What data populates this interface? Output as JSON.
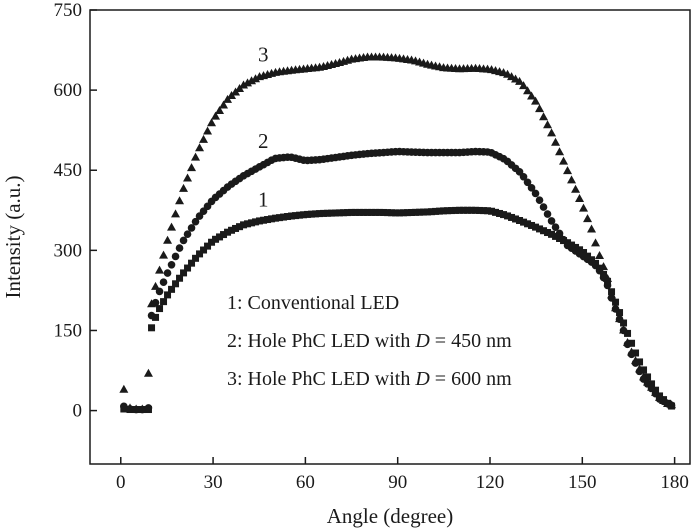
{
  "chart_data": {
    "type": "scatter",
    "title": "",
    "xlabel": "Angle (degree)",
    "ylabel": "Intensity (a.u.)",
    "xlim": [
      -10,
      185
    ],
    "ylim": [
      -100,
      750
    ],
    "xticks": [
      0,
      30,
      60,
      90,
      120,
      150,
      180
    ],
    "yticks": [
      0,
      150,
      300,
      450,
      600,
      750
    ],
    "grid": false,
    "legend_position": "lower-center",
    "legend": [
      {
        "label": "1: Conventional LED",
        "parts": [
          "1: Conventional LED"
        ]
      },
      {
        "label": "2: Hole PhC LED with D = 450 nm",
        "parts": [
          "2: Hole PhC LED with ",
          "D",
          " = 450 nm"
        ]
      },
      {
        "label": "3: Hole PhC LED with D = 600 nm",
        "parts": [
          "3: Hole PhC LED with ",
          "D",
          " = 600 nm"
        ]
      }
    ],
    "series": [
      {
        "name": "1",
        "marker": "square",
        "color": "#1a1a1a",
        "label_at": [
          45,
          395
        ],
        "x": [
          1,
          3,
          5,
          7,
          9,
          10,
          12,
          15,
          20,
          25,
          30,
          35,
          40,
          45,
          50,
          55,
          60,
          65,
          70,
          75,
          80,
          85,
          90,
          95,
          100,
          105,
          110,
          115,
          120,
          125,
          130,
          135,
          140,
          145,
          150,
          155,
          158,
          160,
          163,
          165,
          168,
          170,
          173,
          175,
          178,
          180
        ],
        "y": [
          3,
          2,
          2,
          2,
          2,
          155,
          185,
          215,
          255,
          290,
          318,
          335,
          348,
          355,
          360,
          364,
          367,
          369,
          370,
          371,
          371,
          371,
          370,
          371,
          372,
          374,
          375,
          375,
          374,
          366,
          355,
          343,
          330,
          315,
          298,
          272,
          245,
          215,
          170,
          140,
          98,
          75,
          45,
          28,
          12,
          5
        ]
      },
      {
        "name": "2",
        "marker": "circle",
        "color": "#1a1a1a",
        "label_at": [
          45,
          505
        ],
        "x": [
          1,
          3,
          5,
          7,
          9,
          10,
          12,
          15,
          20,
          25,
          30,
          35,
          40,
          45,
          50,
          55,
          60,
          65,
          70,
          75,
          80,
          85,
          90,
          95,
          100,
          105,
          110,
          115,
          120,
          125,
          130,
          135,
          140,
          145,
          150,
          153,
          155,
          158,
          160,
          163,
          165,
          168,
          170,
          173,
          175,
          178,
          180
        ],
        "y": [
          8,
          3,
          2,
          2,
          5,
          178,
          215,
          255,
          315,
          360,
          395,
          420,
          440,
          456,
          472,
          475,
          468,
          470,
          474,
          478,
          481,
          483,
          485,
          484,
          483,
          483,
          483,
          485,
          484,
          470,
          445,
          405,
          355,
          310,
          290,
          278,
          268,
          238,
          202,
          158,
          118,
          80,
          58,
          38,
          22,
          12,
          8
        ]
      },
      {
        "name": "3",
        "marker": "triangle",
        "color": "#1a1a1a",
        "label_at": [
          45,
          667
        ],
        "x": [
          1,
          3,
          5,
          7,
          9,
          10,
          12,
          15,
          20,
          25,
          30,
          35,
          40,
          45,
          50,
          55,
          60,
          65,
          70,
          75,
          80,
          85,
          90,
          95,
          100,
          105,
          110,
          115,
          120,
          125,
          130,
          135,
          140,
          145,
          150,
          153,
          155,
          158,
          160,
          163,
          165,
          168,
          170,
          173,
          175,
          178,
          180
        ],
        "y": [
          40,
          5,
          3,
          3,
          70,
          200,
          250,
          315,
          410,
          485,
          545,
          585,
          610,
          625,
          633,
          637,
          640,
          643,
          650,
          658,
          662,
          662,
          660,
          656,
          648,
          642,
          640,
          641,
          639,
          632,
          615,
          578,
          520,
          452,
          385,
          340,
          300,
          252,
          205,
          158,
          122,
          85,
          62,
          40,
          25,
          12,
          10
        ]
      }
    ]
  }
}
